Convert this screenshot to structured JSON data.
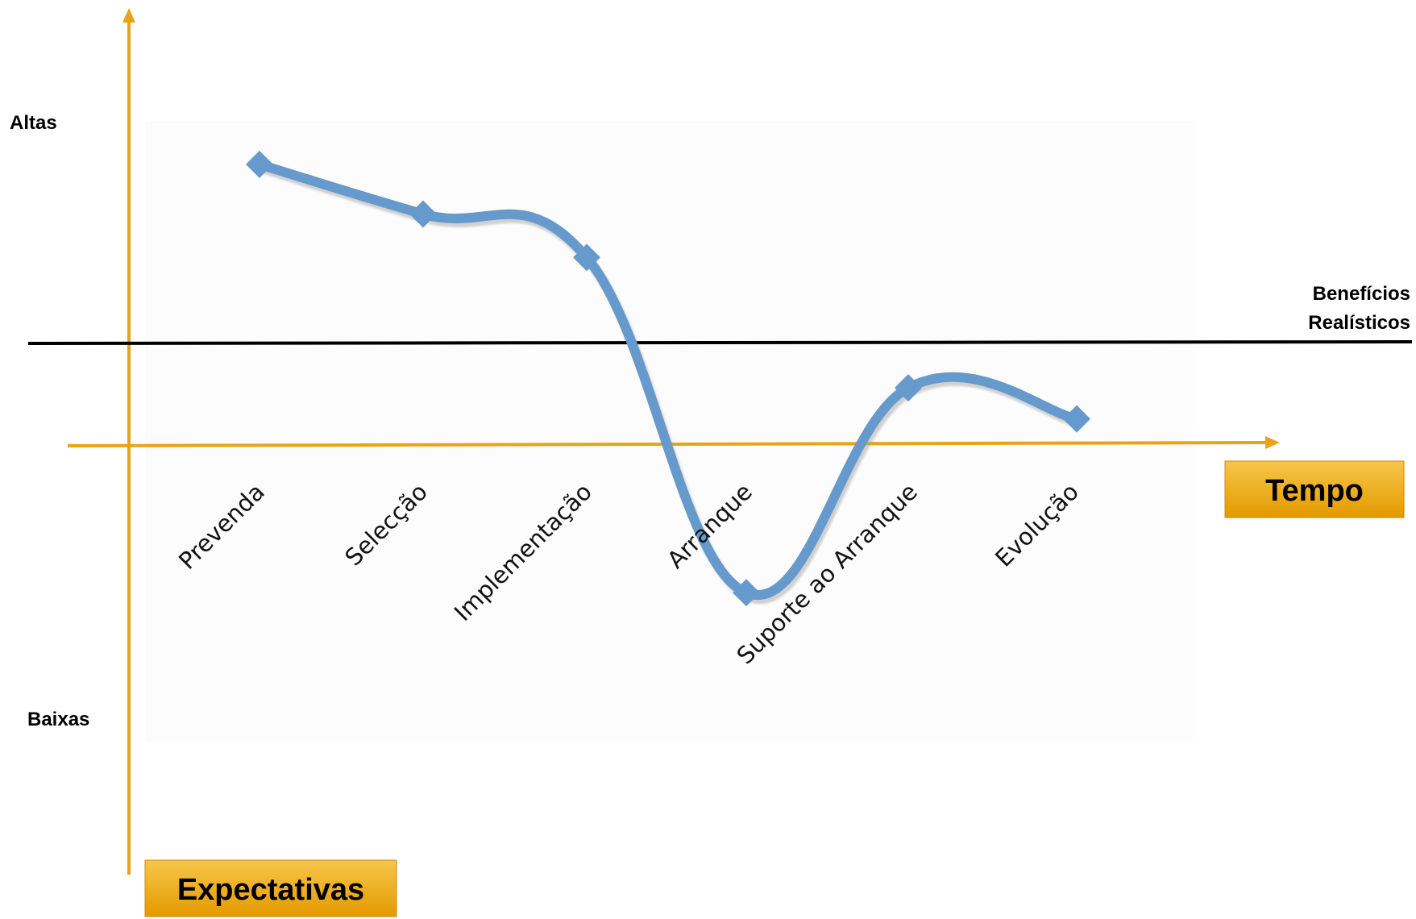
{
  "chart_data": {
    "type": "line",
    "title": "",
    "xlabel": "Tempo",
    "ylabel": "Expectativas",
    "y_high_label": "Altas",
    "y_low_label": "Baixas",
    "reference_line": {
      "label_line1": "Benefícios",
      "label_line2": "Realísticos",
      "value": 0.55
    },
    "ylim": [
      0,
      1
    ],
    "categories": [
      "Prevenda",
      "Selecção",
      "Implementação",
      "Arranque",
      "Suporte ao Arranque",
      "Evolução"
    ],
    "series": [
      {
        "values": [
          0.93,
          0.85,
          0.78,
          0.24,
          0.57,
          0.52
        ]
      }
    ],
    "grid": false,
    "legend": "none",
    "colors": {
      "axis": "#E8A317",
      "line": "#6699CC",
      "reference": "#000000",
      "box_top": "#F7C64A",
      "box_bottom": "#E39A00"
    }
  }
}
